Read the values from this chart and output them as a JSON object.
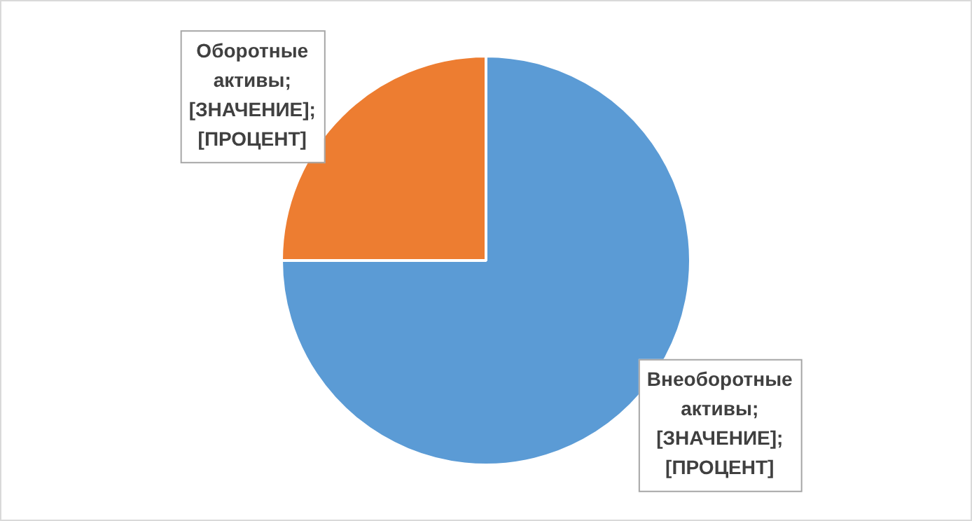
{
  "chart_data": {
    "type": "pie",
    "categories": [
      "Внеоборотные активы",
      "Оборотные активы"
    ],
    "values": [
      75,
      25
    ],
    "colors": [
      "#5b9bd5",
      "#ed7d31"
    ],
    "value_labels": [
      "; [ЗНАЧЕНИЕ]; [ПРОЦЕНТ]",
      "; [ЗНАЧЕНИЕ]; [ПРОЦЕНТ]"
    ],
    "legend": false
  }
}
